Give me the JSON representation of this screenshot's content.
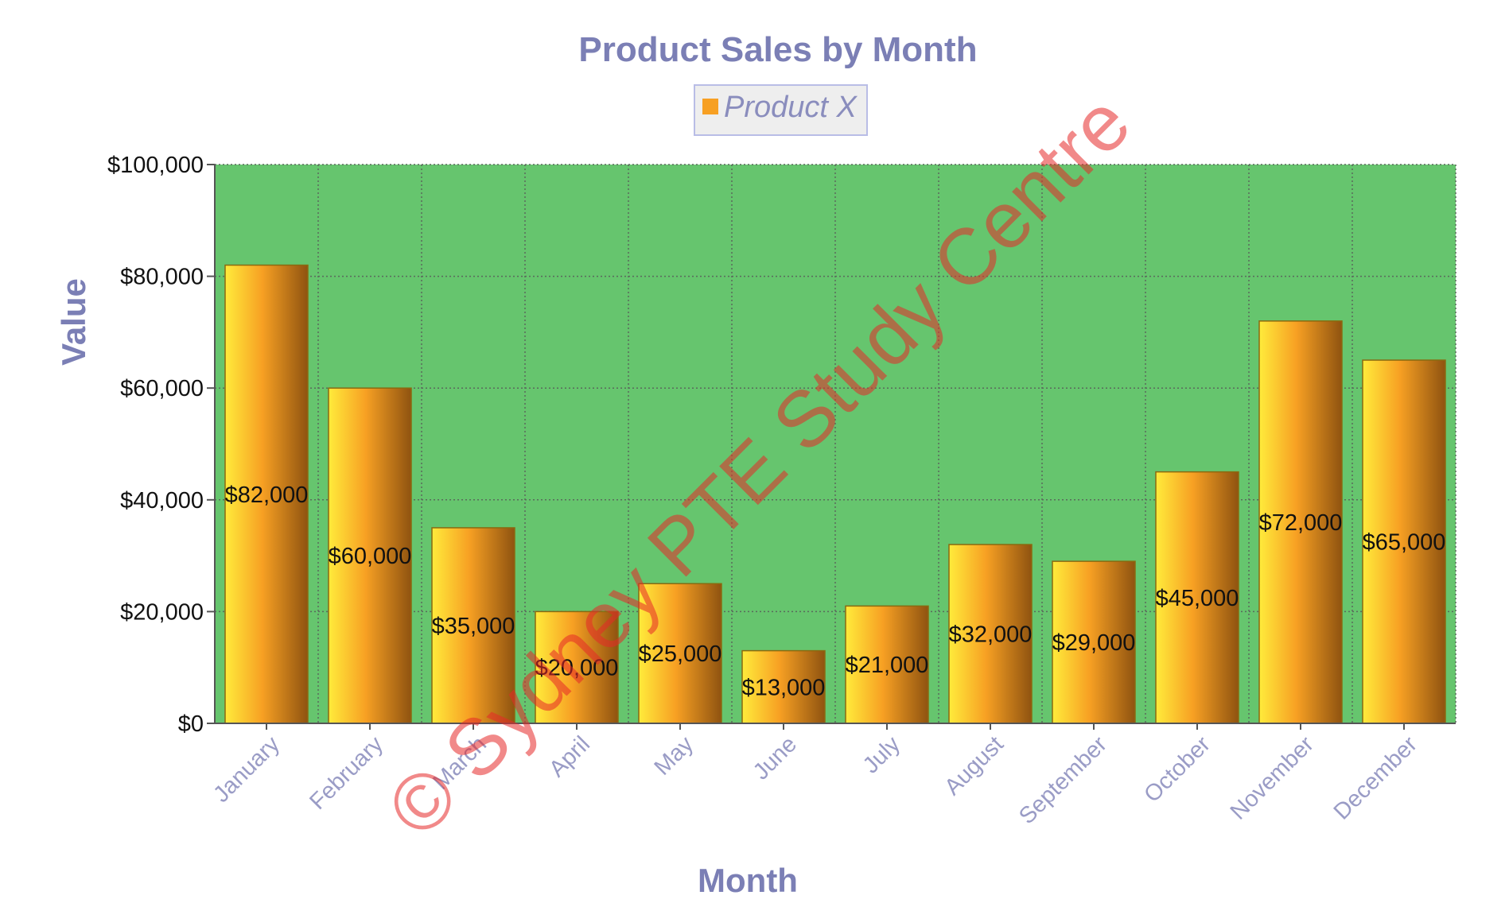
{
  "chart_data": {
    "type": "bar",
    "title": "Product Sales by Month",
    "xlabel": "Month",
    "ylabel": "Value",
    "categories": [
      "January",
      "February",
      "March",
      "April",
      "May",
      "June",
      "July",
      "August",
      "September",
      "October",
      "November",
      "December"
    ],
    "series": [
      {
        "name": "Product X",
        "values": [
          82000,
          60000,
          35000,
          20000,
          25000,
          13000,
          21000,
          32000,
          29000,
          45000,
          72000,
          65000
        ],
        "labels": [
          "$82,000",
          "$60,000",
          "$35,000",
          "$20,000",
          "$25,000",
          "$13,000",
          "$21,000",
          "$32,000",
          "$29,000",
          "$45,000",
          "$72,000",
          "$65,000"
        ]
      }
    ],
    "ylim": [
      0,
      100000
    ],
    "y_ticks": [
      0,
      20000,
      40000,
      60000,
      80000,
      100000
    ],
    "y_tick_labels": [
      "$0",
      "$20,000",
      "$40,000",
      "$60,000",
      "$80,000",
      "$100,000"
    ],
    "grid": true,
    "legend_position": "top-center"
  },
  "watermark": "© Sydney PTE Study Centre",
  "colors": {
    "plot_background": "#66c56e",
    "grid_line": "#5a6a5c",
    "bar_light": "#ffeb3b",
    "bar_mid": "#f7a023",
    "bar_dark": "#8f5310",
    "bar_border": "#8a6a10",
    "legend_swatch": "#f7a023",
    "legend_border": "#b9bde6",
    "legend_background": "#eeeeee",
    "title_text": "#7b7fb5",
    "axis_line": "#555555"
  }
}
